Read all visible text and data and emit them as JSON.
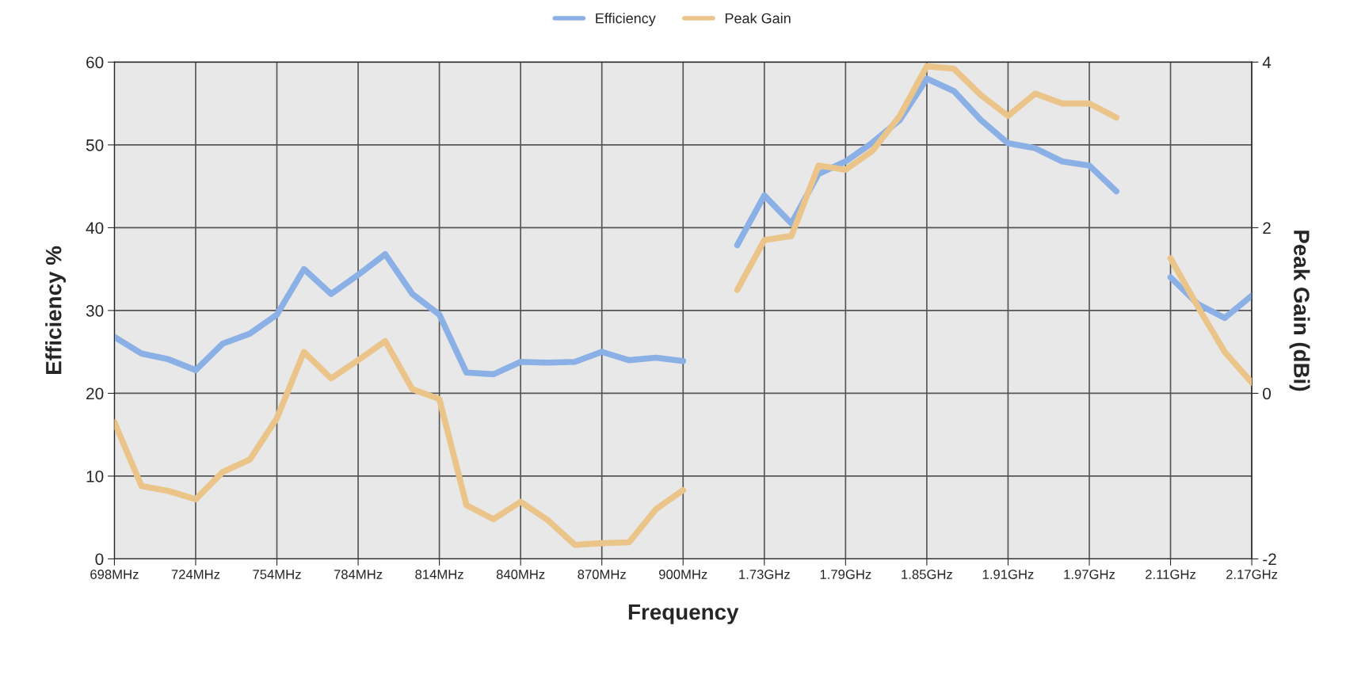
{
  "chart_data": {
    "type": "line",
    "xlabel": "Frequency",
    "ylabel": "Efficiency %",
    "y2label": "Peak Gain (dBi)",
    "categories": [
      "698MHz",
      null,
      null,
      "724MHz",
      null,
      null,
      "754MHz",
      null,
      null,
      "784MHz",
      null,
      null,
      "814MHz",
      null,
      null,
      "840MHz",
      null,
      null,
      "870MHz",
      null,
      null,
      "900MHz",
      null,
      null,
      "1.73GHz",
      null,
      null,
      "1.79GHz",
      null,
      null,
      "1.85GHz",
      null,
      null,
      "1.91GHz",
      null,
      null,
      "1.97GHz",
      null,
      null,
      "2.11GHz",
      null,
      null,
      "2.17GHz"
    ],
    "ylim": [
      0,
      60
    ],
    "yticks": [
      0,
      10,
      20,
      30,
      40,
      50,
      60
    ],
    "y2lim": [
      -2,
      4
    ],
    "y2ticks": [
      -2,
      0,
      2,
      4
    ],
    "grid": true,
    "legend": "top",
    "line_style": "solid",
    "marker": "none",
    "series": [
      {
        "name": "Efficiency",
        "color": "#8ab0e6",
        "values": [
          26.8,
          24.8,
          24.1,
          22.8,
          26,
          27.2,
          29.5,
          35,
          32,
          34.3,
          36.8,
          32,
          29.5,
          22.5,
          22.3,
          23.8,
          23.7,
          23.8,
          25,
          24,
          24.3,
          23.9,
          null,
          37.9,
          43.9,
          40.5,
          46.5,
          48,
          50.3,
          53,
          58,
          56.5,
          53,
          50.2,
          49.6,
          48,
          47.5,
          44.4,
          null,
          34,
          30.8,
          29.1,
          31.8
        ]
      },
      {
        "name": "Peak Gain",
        "color": "#eac488",
        "axis": "y2",
        "values": [
          -0.35,
          -1.12,
          -1.18,
          -1.28,
          -0.95,
          -0.8,
          -0.3,
          0.5,
          0.18,
          0.4,
          0.63,
          0.05,
          -0.07,
          -1.35,
          -1.52,
          -1.31,
          -1.53,
          -1.83,
          -1.81,
          -1.8,
          -1.4,
          -1.17,
          null,
          1.25,
          1.85,
          1.9,
          2.75,
          2.7,
          2.93,
          3.35,
          3.95,
          3.92,
          3.6,
          3.35,
          3.62,
          3.5,
          3.5,
          3.33,
          null,
          1.63,
          1.05,
          0.5,
          0.13
        ]
      }
    ]
  }
}
